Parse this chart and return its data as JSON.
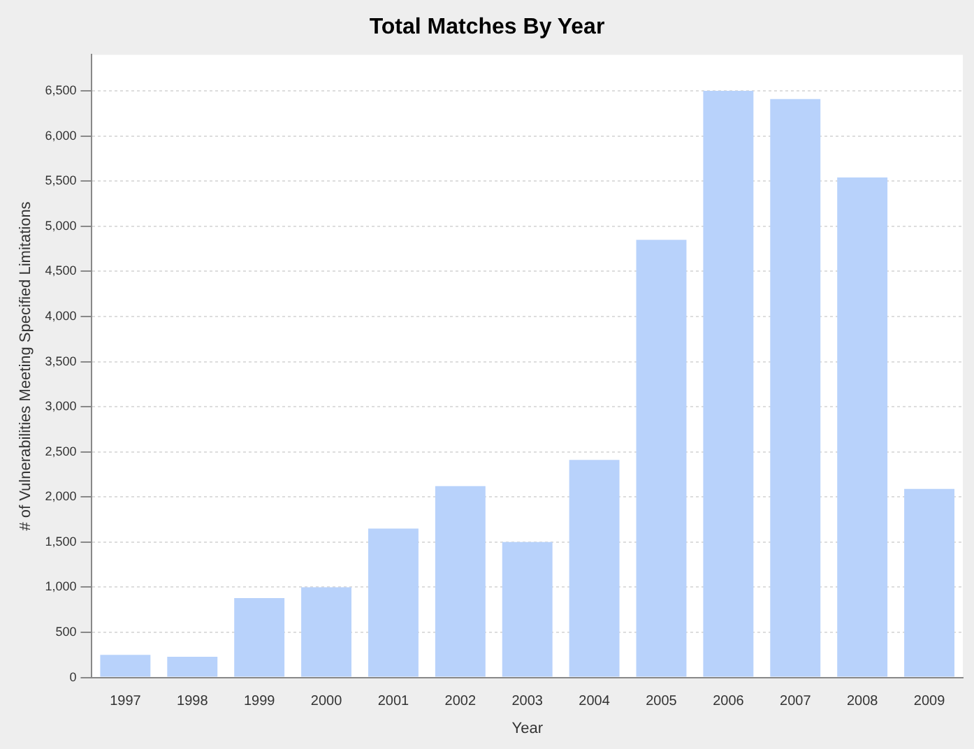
{
  "chart_data": {
    "type": "bar",
    "title": "Total Matches By Year",
    "xlabel": "Year",
    "ylabel": "# of Vulnerabilities Meeting Specified Limitations",
    "categories": [
      "1997",
      "1998",
      "1999",
      "2000",
      "2001",
      "2002",
      "2003",
      "2004",
      "2005",
      "2006",
      "2007",
      "2008",
      "2009"
    ],
    "values": [
      250,
      230,
      880,
      1000,
      1650,
      2120,
      1500,
      2410,
      4850,
      6500,
      6410,
      5540,
      2090
    ],
    "color": "#b8d2fb",
    "ylim": [
      0,
      6900
    ],
    "yticks": [
      {
        "value": 0,
        "label": "0"
      },
      {
        "value": 500,
        "label": "500"
      },
      {
        "value": 1000,
        "label": "1,000"
      },
      {
        "value": 1500,
        "label": "1,500"
      },
      {
        "value": 2000,
        "label": "2,000"
      },
      {
        "value": 2500,
        "label": "2,500"
      },
      {
        "value": 3000,
        "label": "3,000"
      },
      {
        "value": 3500,
        "label": "3,500"
      },
      {
        "value": 4000,
        "label": "4,000"
      },
      {
        "value": 4500,
        "label": "4,500"
      },
      {
        "value": 5000,
        "label": "5,000"
      },
      {
        "value": 5500,
        "label": "5,500"
      },
      {
        "value": 6000,
        "label": "6,000"
      },
      {
        "value": 6500,
        "label": "6,500"
      }
    ],
    "grid": "y",
    "legend": false
  }
}
